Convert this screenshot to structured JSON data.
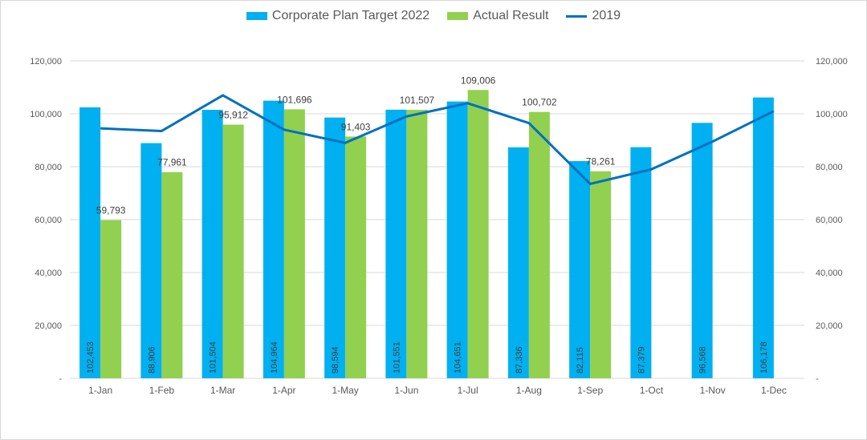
{
  "chart_data": {
    "type": "bar",
    "categories": [
      "1-Jan",
      "1-Feb",
      "1-Mar",
      "1-Apr",
      "1-May",
      "1-Jun",
      "1-Jul",
      "1-Aug",
      "1-Sep",
      "1-Oct",
      "1-Nov",
      "1-Dec"
    ],
    "series": [
      {
        "name": "Corporate Plan Target 2022",
        "type": "bar",
        "color": "#00B0F0",
        "values": [
          102453,
          88906,
          101504,
          104964,
          98594,
          101551,
          104651,
          87336,
          82115,
          87379,
          96568,
          106178
        ],
        "labels": [
          "102,453",
          "88,906",
          "101,504",
          "104,964",
          "98,594",
          "101,551",
          "104,651",
          "87,336",
          "82,115",
          "87,379",
          "96,568",
          "106,178"
        ]
      },
      {
        "name": "Actual Result",
        "type": "bar",
        "color": "#92D050",
        "values": [
          59793,
          77961,
          95912,
          101696,
          91403,
          101507,
          109006,
          100702,
          78261,
          null,
          null,
          null
        ],
        "labels": [
          "59,793",
          "77,961",
          "95,912",
          "101,696",
          "91,403",
          "101,507",
          "109,006",
          "100,702",
          "78,261",
          "",
          "",
          ""
        ]
      },
      {
        "name": "2019",
        "type": "line",
        "color": "#0070C0",
        "values": [
          94500,
          93500,
          107000,
          94000,
          89000,
          99000,
          104000,
          96500,
          73500,
          79000,
          89500,
          101000
        ]
      }
    ],
    "ylim": [
      0,
      120000
    ],
    "y_ticks": [
      "-",
      "20,000",
      "40,000",
      "60,000",
      "80,000",
      "100,000",
      "120,000"
    ],
    "y_tick_values": [
      0,
      20000,
      40000,
      60000,
      80000,
      100000,
      120000
    ],
    "secondary_axis": true,
    "grid": true,
    "legend_position": "top",
    "title": "",
    "xlabel": "",
    "ylabel": ""
  }
}
